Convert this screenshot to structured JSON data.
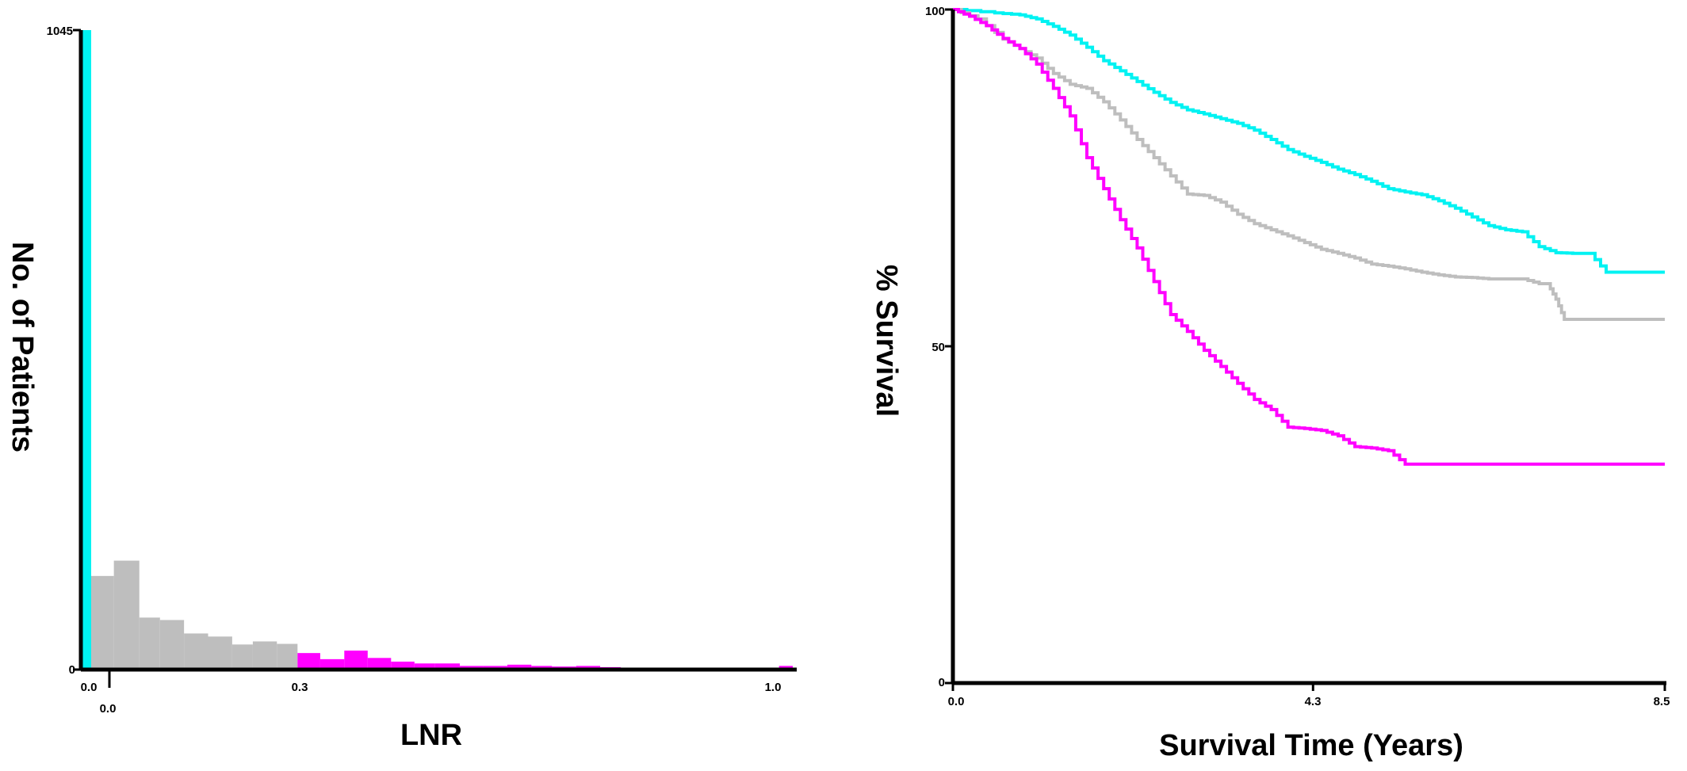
{
  "chart_data": [
    {
      "type": "bar",
      "subtype": "histogram",
      "xlabel": "LNR",
      "ylabel": "No. of Patients",
      "ylim": [
        0,
        1045
      ],
      "xlim": [
        -0.015,
        1.02
      ],
      "x_ticks": [
        "0.0",
        "0.3",
        "1.0"
      ],
      "x_tick_zero_group": "0.0",
      "y_ticks": [
        "0",
        "1045"
      ],
      "colors": {
        "zero_group": "#00f2f2",
        "middle_group": "#bebebe",
        "high_group": "#ff00ff",
        "axis": "#000000"
      },
      "bins": [
        {
          "x0": -0.015,
          "x1": 0.0,
          "value": 1045,
          "group": "zero_group"
        },
        {
          "x0": 0.0,
          "x1": 0.033,
          "value": 153,
          "group": "middle_group"
        },
        {
          "x0": 0.033,
          "x1": 0.07,
          "value": 178,
          "group": "middle_group"
        },
        {
          "x0": 0.07,
          "x1": 0.1,
          "value": 85,
          "group": "middle_group"
        },
        {
          "x0": 0.1,
          "x1": 0.135,
          "value": 81,
          "group": "middle_group"
        },
        {
          "x0": 0.135,
          "x1": 0.17,
          "value": 59,
          "group": "middle_group"
        },
        {
          "x0": 0.17,
          "x1": 0.205,
          "value": 54,
          "group": "middle_group"
        },
        {
          "x0": 0.205,
          "x1": 0.235,
          "value": 41,
          "group": "middle_group"
        },
        {
          "x0": 0.235,
          "x1": 0.27,
          "value": 46,
          "group": "middle_group"
        },
        {
          "x0": 0.27,
          "x1": 0.3,
          "value": 42,
          "group": "middle_group"
        },
        {
          "x0": 0.3,
          "x1": 0.333,
          "value": 27,
          "group": "high_group"
        },
        {
          "x0": 0.333,
          "x1": 0.368,
          "value": 17,
          "group": "high_group"
        },
        {
          "x0": 0.368,
          "x1": 0.402,
          "value": 31,
          "group": "high_group"
        },
        {
          "x0": 0.402,
          "x1": 0.436,
          "value": 19,
          "group": "high_group"
        },
        {
          "x0": 0.436,
          "x1": 0.47,
          "value": 13,
          "group": "high_group"
        },
        {
          "x0": 0.47,
          "x1": 0.5,
          "value": 10,
          "group": "high_group"
        },
        {
          "x0": 0.5,
          "x1": 0.536,
          "value": 10,
          "group": "high_group"
        },
        {
          "x0": 0.536,
          "x1": 0.57,
          "value": 6,
          "group": "high_group"
        },
        {
          "x0": 0.57,
          "x1": 0.605,
          "value": 6,
          "group": "high_group"
        },
        {
          "x0": 0.605,
          "x1": 0.64,
          "value": 8,
          "group": "high_group"
        },
        {
          "x0": 0.64,
          "x1": 0.67,
          "value": 6,
          "group": "high_group"
        },
        {
          "x0": 0.67,
          "x1": 0.705,
          "value": 5,
          "group": "high_group"
        },
        {
          "x0": 0.705,
          "x1": 0.74,
          "value": 6,
          "group": "high_group"
        },
        {
          "x0": 0.74,
          "x1": 0.77,
          "value": 4,
          "group": "high_group"
        },
        {
          "x0": 0.77,
          "x1": 0.805,
          "value": 3,
          "group": "high_group"
        },
        {
          "x0": 0.805,
          "x1": 0.84,
          "value": 3,
          "group": "high_group"
        },
        {
          "x0": 0.84,
          "x1": 0.875,
          "value": 2,
          "group": "high_group"
        },
        {
          "x0": 0.875,
          "x1": 0.905,
          "value": 3,
          "group": "high_group"
        },
        {
          "x0": 0.905,
          "x1": 0.94,
          "value": 2,
          "group": "high_group"
        },
        {
          "x0": 0.94,
          "x1": 0.975,
          "value": 2,
          "group": "high_group"
        },
        {
          "x0": 0.975,
          "x1": 1.0,
          "value": 3,
          "group": "high_group"
        },
        {
          "x0": 1.0,
          "x1": 1.02,
          "value": 6,
          "group": "high_group"
        }
      ]
    },
    {
      "type": "line",
      "subtype": "kaplan-meier",
      "xlabel": "Survival Time (Years)",
      "ylabel": "% Survival",
      "xlim": [
        0,
        8.5
      ],
      "ylim": [
        0,
        100
      ],
      "x_ticks": [
        "0.0",
        "4.3",
        "8.5"
      ],
      "y_ticks": [
        "0",
        "50",
        "100"
      ],
      "colors": {
        "axis": "#000000"
      },
      "series": [
        {
          "color": "#00f2f2",
          "points": [
            [
              0,
              100
            ],
            [
              0.5,
              99.5
            ],
            [
              0.8,
              99.2
            ],
            [
              1.0,
              98.6
            ],
            [
              1.2,
              97.5
            ],
            [
              1.4,
              96.2
            ],
            [
              1.6,
              94.4
            ],
            [
              1.8,
              92.4
            ],
            [
              2.0,
              90.9
            ],
            [
              2.2,
              89.3
            ],
            [
              2.4,
              87.7
            ],
            [
              2.6,
              86.2
            ],
            [
              2.8,
              85.1
            ],
            [
              3.0,
              84.5
            ],
            [
              3.2,
              83.8
            ],
            [
              3.4,
              83.1
            ],
            [
              3.6,
              82.1
            ],
            [
              3.8,
              80.7
            ],
            [
              4.0,
              79.2
            ],
            [
              4.2,
              78.2
            ],
            [
              4.4,
              77.3
            ],
            [
              4.6,
              76.3
            ],
            [
              4.8,
              75.5
            ],
            [
              5.0,
              74.5
            ],
            [
              5.2,
              73.4
            ],
            [
              5.4,
              72.9
            ],
            [
              5.6,
              72.5
            ],
            [
              5.8,
              71.6
            ],
            [
              6.0,
              70.5
            ],
            [
              6.2,
              69.2
            ],
            [
              6.4,
              67.9
            ],
            [
              6.6,
              67.3
            ],
            [
              6.8,
              67.0
            ],
            [
              7.0,
              64.8
            ],
            [
              7.2,
              63.9
            ],
            [
              7.4,
              63.8
            ],
            [
              7.6,
              63.8
            ],
            [
              7.8,
              61.0
            ],
            [
              8.0,
              61.0
            ],
            [
              8.5,
              61.0
            ]
          ]
        },
        {
          "color": "#bebebe",
          "points": [
            [
              0,
              100
            ],
            [
              0.3,
              98.6
            ],
            [
              0.6,
              95.6
            ],
            [
              0.8,
              94.2
            ],
            [
              1.0,
              92.8
            ],
            [
              1.2,
              90.5
            ],
            [
              1.4,
              88.9
            ],
            [
              1.6,
              88.3
            ],
            [
              1.8,
              86.3
            ],
            [
              2.0,
              83.6
            ],
            [
              2.2,
              80.7
            ],
            [
              2.4,
              78.0
            ],
            [
              2.6,
              75.3
            ],
            [
              2.8,
              72.6
            ],
            [
              3.0,
              72.4
            ],
            [
              3.2,
              71.4
            ],
            [
              3.4,
              69.6
            ],
            [
              3.6,
              68.2
            ],
            [
              3.8,
              67.3
            ],
            [
              4.0,
              66.4
            ],
            [
              4.2,
              65.4
            ],
            [
              4.4,
              64.4
            ],
            [
              4.6,
              63.8
            ],
            [
              4.8,
              63.1
            ],
            [
              5.0,
              62.2
            ],
            [
              5.2,
              61.9
            ],
            [
              5.4,
              61.5
            ],
            [
              5.6,
              61.0
            ],
            [
              5.8,
              60.6
            ],
            [
              6.0,
              60.3
            ],
            [
              6.2,
              60.2
            ],
            [
              6.4,
              60.0
            ],
            [
              6.6,
              60.0
            ],
            [
              6.8,
              60.0
            ],
            [
              7.0,
              59.3
            ],
            [
              7.1,
              59.3
            ],
            [
              7.2,
              57.0
            ],
            [
              7.3,
              54.0
            ],
            [
              7.5,
              54.0
            ],
            [
              8.0,
              54.0
            ],
            [
              8.5,
              54.0
            ]
          ]
        },
        {
          "color": "#ff00ff",
          "points": [
            [
              0,
              100
            ],
            [
              0.2,
              99.0
            ],
            [
              0.4,
              97.6
            ],
            [
              0.6,
              95.7
            ],
            [
              0.8,
              94.2
            ],
            [
              1.0,
              91.9
            ],
            [
              1.2,
              88.3
            ],
            [
              1.4,
              84.2
            ],
            [
              1.6,
              78.0
            ],
            [
              1.8,
              73.4
            ],
            [
              2.0,
              68.8
            ],
            [
              2.2,
              64.6
            ],
            [
              2.4,
              59.6
            ],
            [
              2.6,
              54.7
            ],
            [
              2.8,
              52.2
            ],
            [
              3.0,
              49.4
            ],
            [
              3.2,
              47.0
            ],
            [
              3.4,
              44.5
            ],
            [
              3.6,
              42.1
            ],
            [
              3.8,
              40.6
            ],
            [
              4.0,
              38.0
            ],
            [
              4.2,
              37.8
            ],
            [
              4.4,
              37.5
            ],
            [
              4.6,
              36.7
            ],
            [
              4.8,
              35.1
            ],
            [
              5.0,
              34.9
            ],
            [
              5.2,
              34.5
            ],
            [
              5.4,
              32.5
            ],
            [
              5.6,
              32.5
            ],
            [
              5.8,
              32.5
            ],
            [
              6.0,
              32.5
            ],
            [
              7.0,
              32.5
            ],
            [
              8.5,
              32.5
            ]
          ]
        }
      ]
    }
  ]
}
